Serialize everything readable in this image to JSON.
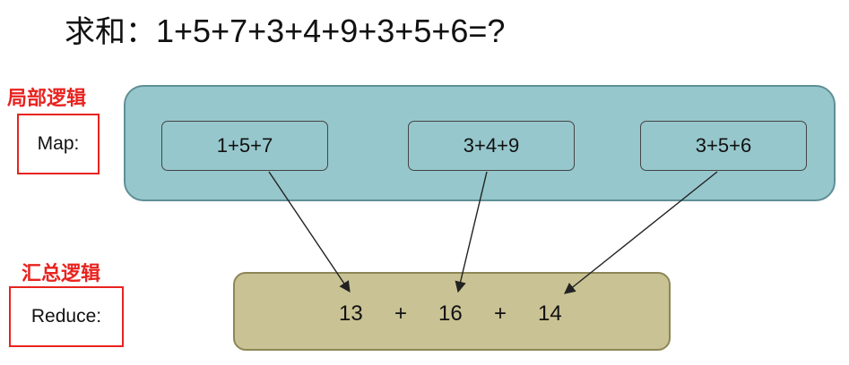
{
  "title": {
    "prefix": "求和：",
    "expression": "1+5+7+3+4+9+3+5+6=?"
  },
  "labels": {
    "map_logic": "局部逻辑",
    "reduce_logic": "汇总逻辑"
  },
  "sides": {
    "map": "Map:",
    "reduce": "Reduce:"
  },
  "map_items": [
    "1+5+7",
    "3+4+9",
    "3+5+6"
  ],
  "reduce": {
    "values": [
      "13",
      "16",
      "14"
    ],
    "operator": "+"
  },
  "colors": {
    "map_fill": "#96c7cc",
    "reduce_fill": "#c9c294",
    "label_red": "#e8231f"
  }
}
